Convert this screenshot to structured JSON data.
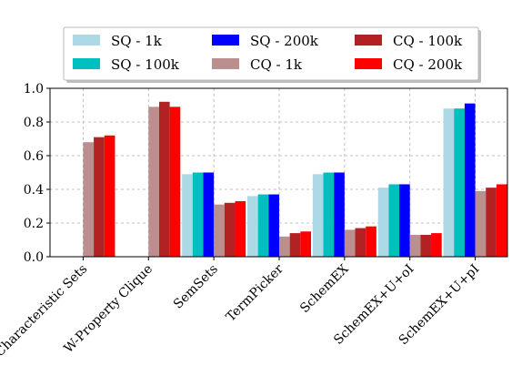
{
  "chart_data": {
    "type": "bar",
    "categories": [
      "Characteristic Sets",
      "W-Property Clique",
      "SemSets",
      "TermPicker",
      "SchemEX",
      "SchemEX+U+oI",
      "SchemEX+U+pI"
    ],
    "series": [
      {
        "name": "SQ - 1k",
        "color": "#add8e6",
        "values": [
          null,
          null,
          0.49,
          0.36,
          0.49,
          0.41,
          0.88
        ]
      },
      {
        "name": "SQ - 100k",
        "color": "#00bfbf",
        "values": [
          null,
          null,
          0.5,
          0.37,
          0.5,
          0.43,
          0.88
        ]
      },
      {
        "name": "SQ - 200k",
        "color": "#0000ff",
        "values": [
          null,
          null,
          0.5,
          0.37,
          0.5,
          0.43,
          0.91
        ]
      },
      {
        "name": "CQ - 1k",
        "color": "#bc8f8f",
        "values": [
          0.68,
          0.89,
          0.31,
          0.12,
          0.16,
          0.13,
          0.39
        ]
      },
      {
        "name": "CQ - 100k",
        "color": "#b22222",
        "values": [
          0.71,
          0.92,
          0.32,
          0.14,
          0.17,
          0.13,
          0.41
        ]
      },
      {
        "name": "CQ - 200k",
        "color": "#ff0000",
        "values": [
          0.72,
          0.89,
          0.33,
          0.15,
          0.18,
          0.14,
          0.43
        ]
      }
    ],
    "ylim": [
      0,
      1.0
    ],
    "yticks": [
      "0.0",
      "0.2",
      "0.4",
      "0.6",
      "0.8",
      "1.0"
    ],
    "grid": true,
    "legend_position": "top"
  }
}
